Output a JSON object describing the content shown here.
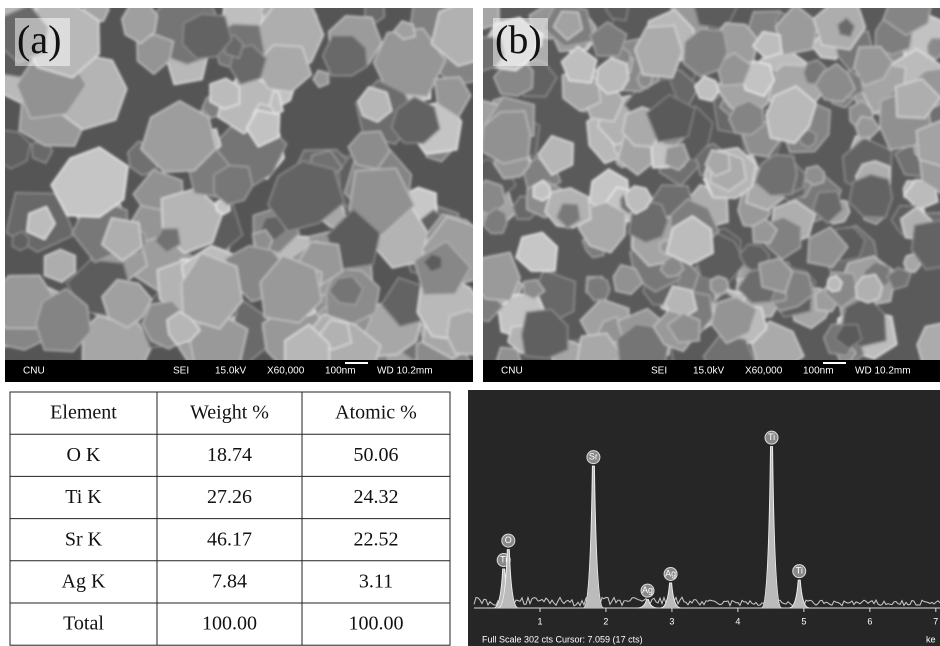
{
  "panels": [
    {
      "label": "(a)",
      "info": [
        "CNU",
        "SEI",
        "15.0kV",
        "X60,000",
        "100nm",
        "WD 10.2mm"
      ]
    },
    {
      "label": "(b)",
      "info": [
        "CNU",
        "SEI",
        "15.0kV",
        "X60,000",
        "100nm",
        "WD 10.2mm"
      ]
    }
  ],
  "table": {
    "header": [
      "Element",
      "Weight %",
      "Atomic %"
    ],
    "rows": [
      [
        "O K",
        "18.74",
        "50.06"
      ],
      [
        "Ti K",
        "27.26",
        "24.32"
      ],
      [
        "Sr K",
        "46.17",
        "22.52"
      ],
      [
        "Ag K",
        "7.84",
        "3.11"
      ],
      [
        "Total",
        "100.00",
        "100.00"
      ]
    ]
  },
  "spectrum": {
    "type": "line",
    "xlim": [
      0,
      7.2
    ],
    "ylim": [
      0,
      302
    ],
    "xticks": [
      1,
      2,
      3,
      4,
      5,
      6,
      7
    ],
    "x_unit": "ke",
    "footer": "Full Scale 302 cts Cursor: 7.059  (17 cts)",
    "peaks": [
      {
        "label": "Ti",
        "energy": 0.45,
        "counts": 70
      },
      {
        "label": "O",
        "energy": 0.52,
        "counts": 105
      },
      {
        "label": "Sr",
        "energy": 1.81,
        "counts": 255
      },
      {
        "label": "Ag",
        "energy": 2.63,
        "counts": 15
      },
      {
        "label": "Ag",
        "energy": 2.98,
        "counts": 45
      },
      {
        "label": "Ti",
        "energy": 4.51,
        "counts": 290
      },
      {
        "label": "Ti",
        "energy": 4.93,
        "counts": 50
      }
    ]
  }
}
